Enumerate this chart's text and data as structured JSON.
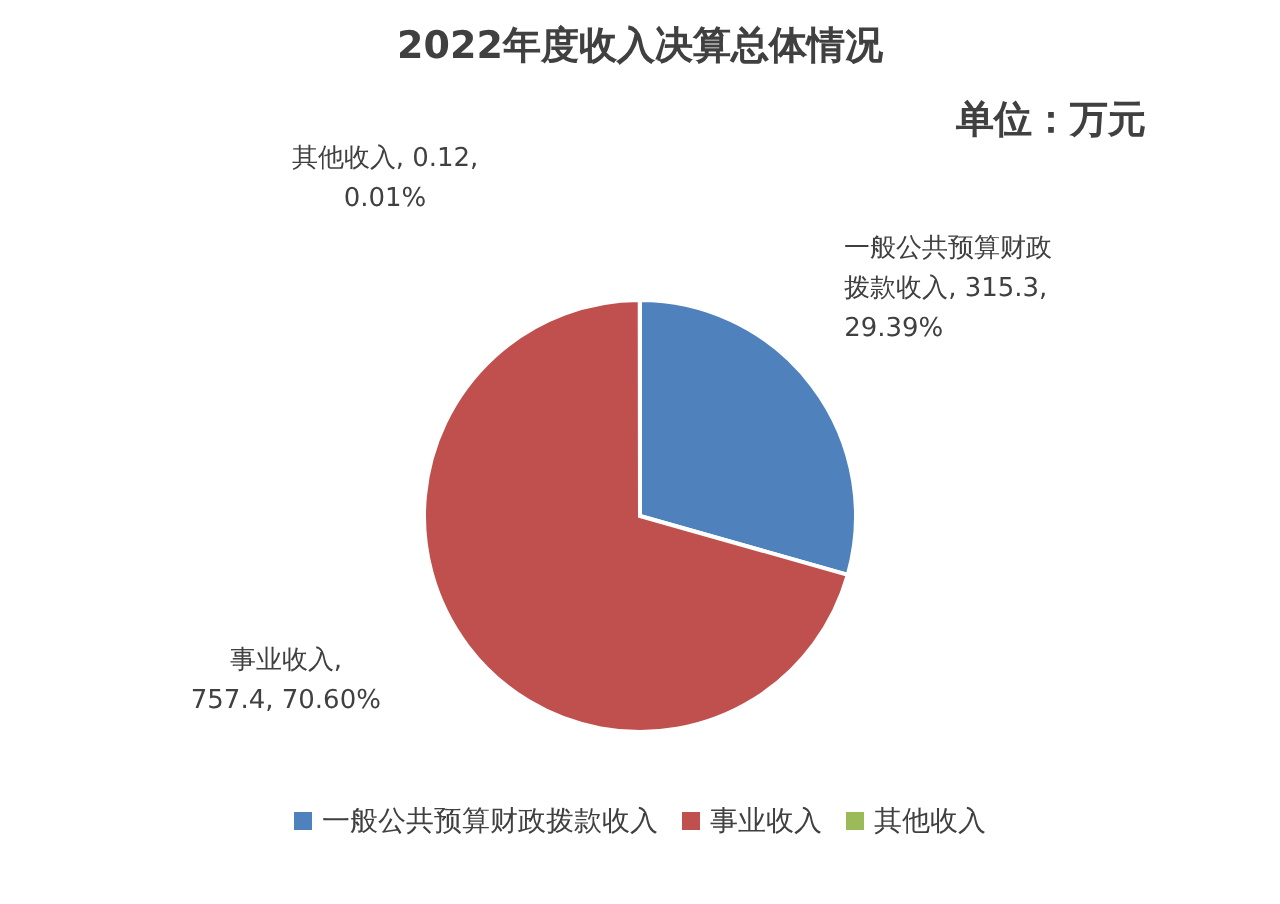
{
  "chart_data": {
    "type": "pie",
    "title": "2022年度收入决算总体情况",
    "subtitle": "单位：万元",
    "categories": [
      "一般公共预算财政拨款收入",
      "事业收入",
      "其他收入"
    ],
    "values": [
      315.3,
      757.4,
      0.12
    ],
    "colors": [
      "#4f81bd",
      "#c0504d",
      "#9bbb59"
    ],
    "value_labels": [
      ", 315.3, 29.39%",
      ", 757.4, 70.60%",
      ", 0.12, 0.01%"
    ],
    "legend": "bottom"
  }
}
